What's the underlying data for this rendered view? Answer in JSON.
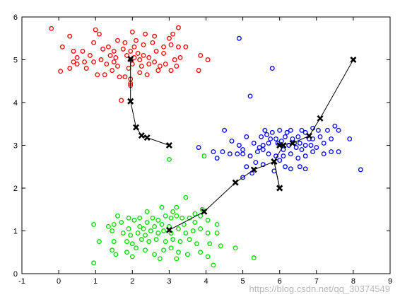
{
  "chart_data": {
    "type": "scatter",
    "title": "",
    "xlabel": "",
    "ylabel": "",
    "xlim": [
      -1,
      9
    ],
    "ylim": [
      0,
      6
    ],
    "x_ticks": [
      "-1",
      "0",
      "1",
      "2",
      "3",
      "4",
      "5",
      "6",
      "7",
      "8",
      "9"
    ],
    "y_ticks": [
      "0",
      "1",
      "2",
      "3",
      "4",
      "5",
      "6"
    ],
    "grid": false,
    "series": [
      {
        "color": "#ff0000",
        "marker": "circle",
        "points": [
          [
            -0.2,
            5.73
          ],
          [
            0.3,
            5.55
          ],
          [
            1.0,
            5.7
          ],
          [
            1.1,
            5.6
          ],
          [
            2.0,
            5.65
          ],
          [
            2.35,
            5.6
          ],
          [
            2.6,
            5.55
          ],
          [
            3.1,
            5.6
          ],
          [
            3.25,
            5.75
          ],
          [
            0.1,
            5.3
          ],
          [
            0.4,
            5.2
          ],
          [
            0.65,
            5.2
          ],
          [
            0.85,
            5.1
          ],
          [
            1.2,
            5.25
          ],
          [
            1.35,
            5.3
          ],
          [
            1.5,
            5.2
          ],
          [
            1.75,
            5.25
          ],
          [
            2.1,
            5.45
          ],
          [
            2.3,
            5.35
          ],
          [
            2.55,
            5.4
          ],
          [
            2.85,
            5.3
          ],
          [
            3.05,
            5.35
          ],
          [
            3.25,
            5.3
          ],
          [
            3.45,
            5.3
          ],
          [
            3.85,
            5.1
          ],
          [
            4.05,
            5.0
          ],
          [
            0.05,
            4.73
          ],
          [
            0.3,
            4.8
          ],
          [
            0.5,
            4.9
          ],
          [
            0.7,
            4.95
          ],
          [
            0.95,
            4.95
          ],
          [
            1.05,
            4.65
          ],
          [
            1.3,
            4.9
          ],
          [
            1.45,
            4.75
          ],
          [
            1.6,
            4.85
          ],
          [
            1.65,
            4.6
          ],
          [
            1.8,
            4.6
          ],
          [
            1.9,
            4.8
          ],
          [
            2.0,
            4.9
          ],
          [
            2.2,
            4.7
          ],
          [
            2.45,
            5.05
          ],
          [
            2.6,
            4.95
          ],
          [
            2.75,
            4.85
          ],
          [
            2.9,
            4.9
          ],
          [
            3.05,
            4.75
          ],
          [
            3.2,
            4.85
          ],
          [
            3.3,
            5.05
          ],
          [
            1.25,
            4.65
          ],
          [
            2.15,
            5.15
          ],
          [
            2.3,
            5.1
          ],
          [
            1.55,
            5.05
          ],
          [
            1.95,
            5.0
          ],
          [
            2.85,
            5.15
          ],
          [
            3.15,
            5.0
          ],
          [
            1.8,
            5.4
          ],
          [
            1.95,
            5.2
          ],
          [
            2.05,
            5.3
          ],
          [
            3.0,
            5.5
          ],
          [
            1.6,
            5.45
          ],
          [
            0.5,
            5.05
          ],
          [
            0.95,
            5.4
          ],
          [
            1.95,
            4.45
          ],
          [
            1.95,
            4.4
          ],
          [
            1.95,
            4.55
          ],
          [
            1.7,
            4.05
          ],
          [
            2.7,
            4.75
          ],
          [
            1.4,
            5.1
          ],
          [
            1.15,
            5.0
          ],
          [
            0.75,
            4.8
          ],
          [
            2.45,
            4.9
          ],
          [
            3.8,
            4.75
          ],
          [
            2.65,
            5.2
          ],
          [
            1.85,
            5.1
          ],
          [
            2.05,
            5.05
          ],
          [
            2.2,
            5.0
          ],
          [
            0.4,
            4.95
          ],
          [
            1.5,
            4.95
          ],
          [
            2.25,
            4.85
          ],
          [
            2.4,
            4.65
          ]
        ]
      },
      {
        "color": "#0000ff",
        "marker": "circle",
        "points": [
          [
            4.9,
            5.5
          ],
          [
            5.8,
            4.8
          ],
          [
            5.2,
            4.15
          ],
          [
            4.5,
            3.35
          ],
          [
            4.7,
            3.1
          ],
          [
            4.9,
            3.0
          ],
          [
            5.0,
            2.9
          ],
          [
            5.1,
            3.2
          ],
          [
            5.3,
            3.05
          ],
          [
            5.5,
            3.2
          ],
          [
            5.6,
            3.35
          ],
          [
            5.7,
            3.05
          ],
          [
            5.8,
            3.3
          ],
          [
            5.9,
            3.15
          ],
          [
            6.0,
            3.35
          ],
          [
            6.2,
            3.3
          ],
          [
            6.3,
            3.35
          ],
          [
            6.5,
            3.2
          ],
          [
            6.6,
            3.35
          ],
          [
            6.7,
            3.3
          ],
          [
            6.9,
            3.15
          ],
          [
            7.1,
            3.2
          ],
          [
            7.3,
            3.35
          ],
          [
            7.5,
            3.45
          ],
          [
            7.6,
            3.35
          ],
          [
            7.9,
            3.15
          ],
          [
            3.8,
            2.95
          ],
          [
            4.2,
            2.85
          ],
          [
            4.45,
            2.85
          ],
          [
            4.65,
            2.8
          ],
          [
            4.85,
            2.8
          ],
          [
            5.0,
            2.8
          ],
          [
            5.2,
            2.75
          ],
          [
            5.4,
            2.85
          ],
          [
            5.55,
            2.9
          ],
          [
            5.7,
            2.8
          ],
          [
            5.9,
            2.75
          ],
          [
            6.1,
            2.75
          ],
          [
            6.3,
            2.8
          ],
          [
            6.5,
            2.7
          ],
          [
            6.7,
            2.75
          ],
          [
            6.9,
            2.85
          ],
          [
            7.2,
            2.8
          ],
          [
            7.4,
            2.85
          ],
          [
            7.6,
            2.85
          ],
          [
            4.3,
            2.7
          ],
          [
            5.1,
            2.5
          ],
          [
            5.35,
            2.6
          ],
          [
            5.55,
            2.55
          ],
          [
            5.85,
            2.4
          ],
          [
            6.15,
            2.5
          ],
          [
            6.3,
            2.45
          ],
          [
            6.55,
            2.5
          ],
          [
            6.7,
            2.45
          ],
          [
            5.0,
            2.25
          ],
          [
            5.25,
            2.35
          ],
          [
            8.2,
            2.43
          ],
          [
            6.0,
            2.65
          ],
          [
            6.1,
            2.9
          ],
          [
            6.25,
            3.0
          ],
          [
            6.4,
            3.05
          ],
          [
            6.55,
            3.05
          ],
          [
            6.7,
            3.0
          ],
          [
            6.85,
            3.0
          ],
          [
            7.0,
            2.95
          ],
          [
            7.2,
            3.05
          ],
          [
            7.4,
            3.15
          ],
          [
            5.75,
            3.15
          ],
          [
            5.55,
            3.0
          ],
          [
            5.45,
            2.95
          ],
          [
            5.95,
            3.05
          ],
          [
            6.05,
            3.1
          ],
          [
            6.45,
            2.95
          ],
          [
            6.6,
            2.9
          ],
          [
            6.35,
            3.15
          ],
          [
            6.8,
            3.15
          ],
          [
            6.15,
            3.2
          ],
          [
            5.65,
            3.25
          ],
          [
            6.9,
            3.4
          ],
          [
            7.05,
            3.35
          ]
        ]
      },
      {
        "color": "#00dd00",
        "marker": "circle",
        "points": [
          [
            3.45,
            1.78
          ],
          [
            3.9,
            1.5
          ],
          [
            3.2,
            1.55
          ],
          [
            2.8,
            1.55
          ],
          [
            2.4,
            1.45
          ],
          [
            1.6,
            1.35
          ],
          [
            0.95,
            1.15
          ],
          [
            1.35,
            1.1
          ],
          [
            1.5,
            1.15
          ],
          [
            1.7,
            1.2
          ],
          [
            1.9,
            1.3
          ],
          [
            2.05,
            1.25
          ],
          [
            2.2,
            1.3
          ],
          [
            2.4,
            1.2
          ],
          [
            2.55,
            1.3
          ],
          [
            2.7,
            1.25
          ],
          [
            2.9,
            1.35
          ],
          [
            3.05,
            1.3
          ],
          [
            3.2,
            1.35
          ],
          [
            3.35,
            1.3
          ],
          [
            3.55,
            1.3
          ],
          [
            3.7,
            1.4
          ],
          [
            3.85,
            1.35
          ],
          [
            4.05,
            1.25
          ],
          [
            4.3,
            1.15
          ],
          [
            1.45,
            1.0
          ],
          [
            1.75,
            0.95
          ],
          [
            1.95,
            0.9
          ],
          [
            2.15,
            0.95
          ],
          [
            2.35,
            0.9
          ],
          [
            2.5,
            1.0
          ],
          [
            2.7,
            0.95
          ],
          [
            2.85,
            1.0
          ],
          [
            3.05,
            0.95
          ],
          [
            3.25,
            1.05
          ],
          [
            3.45,
            0.95
          ],
          [
            3.65,
            1.0
          ],
          [
            3.85,
            1.05
          ],
          [
            4.05,
            0.95
          ],
          [
            4.3,
            0.95
          ],
          [
            1.1,
            0.75
          ],
          [
            1.5,
            0.75
          ],
          [
            1.85,
            0.75
          ],
          [
            2.0,
            0.7
          ],
          [
            2.25,
            0.8
          ],
          [
            2.45,
            0.75
          ],
          [
            2.65,
            0.8
          ],
          [
            2.9,
            0.75
          ],
          [
            3.1,
            0.8
          ],
          [
            3.3,
            0.75
          ],
          [
            3.55,
            0.8
          ],
          [
            3.75,
            0.7
          ],
          [
            4.1,
            0.7
          ],
          [
            4.4,
            0.65
          ],
          [
            1.45,
            0.55
          ],
          [
            1.85,
            0.5
          ],
          [
            2.1,
            0.6
          ],
          [
            2.35,
            0.55
          ],
          [
            2.6,
            0.45
          ],
          [
            2.85,
            0.55
          ],
          [
            3.05,
            0.6
          ],
          [
            3.25,
            0.5
          ],
          [
            3.5,
            0.45
          ],
          [
            3.85,
            0.5
          ],
          [
            4.05,
            0.4
          ],
          [
            1.55,
            0.45
          ],
          [
            2.0,
            0.4
          ],
          [
            2.75,
            0.35
          ],
          [
            3.2,
            0.35
          ],
          [
            4.8,
            0.6
          ],
          [
            5.3,
            0.37
          ],
          [
            0.95,
            0.25
          ],
          [
            4.2,
            0.2
          ],
          [
            3.0,
            2.67
          ],
          [
            3.95,
            2.75
          ],
          [
            1.9,
            1.05
          ],
          [
            2.3,
            1.05
          ],
          [
            2.6,
            1.1
          ],
          [
            3.0,
            1.1
          ],
          [
            3.4,
            1.15
          ],
          [
            3.7,
            1.2
          ],
          [
            2.2,
            1.1
          ],
          [
            2.8,
            1.15
          ],
          [
            3.1,
            1.45
          ]
        ]
      }
    ],
    "centroid_paths": [
      {
        "color": "#000000",
        "marker": "x",
        "points": [
          [
            3,
            3
          ],
          [
            2.4,
            3.18
          ],
          [
            2.25,
            3.23
          ],
          [
            2.1,
            3.42
          ],
          [
            1.95,
            4.03
          ],
          [
            1.95,
            5.02
          ]
        ]
      },
      {
        "color": "#000000",
        "marker": "x",
        "points": [
          [
            6,
            2
          ],
          [
            5.85,
            2.62
          ],
          [
            6.1,
            3.0
          ],
          [
            6.0,
            3.0
          ]
        ]
      },
      {
        "color": "#000000",
        "marker": "x",
        "points": [
          [
            8,
            5
          ],
          [
            7.1,
            3.63
          ],
          [
            6.8,
            3.22
          ],
          [
            6.35,
            3.05
          ],
          [
            6.0,
            3.0
          ]
        ]
      },
      {
        "color": "#000000",
        "marker": "x",
        "points": [
          [
            6,
            2
          ],
          [
            5.85,
            2.62
          ],
          [
            5.3,
            2.43
          ],
          [
            4.8,
            2.13
          ],
          [
            3.95,
            1.45
          ],
          [
            3.0,
            1.02
          ]
        ]
      }
    ]
  },
  "watermark": "https://blog.csdn.net/qq_30374549"
}
